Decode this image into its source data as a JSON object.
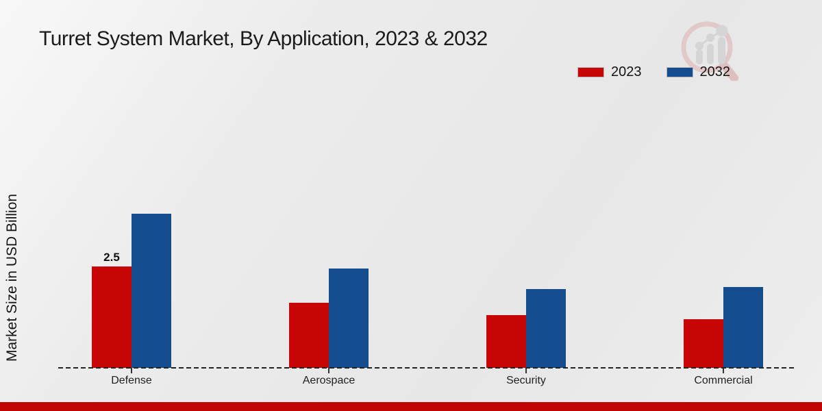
{
  "page": {
    "title": "Turret System Market, By Application, 2023 & 2032"
  },
  "chart_data": {
    "type": "bar",
    "title": "Turret System Market, By Application, 2023 & 2032",
    "xlabel": "",
    "ylabel": "Market Size in USD Billion",
    "unit": "USD Billion",
    "categories": [
      "Defense",
      "Aerospace",
      "Security",
      "Commercial"
    ],
    "series": [
      {
        "name": "2023",
        "color": "#c90606",
        "values": [
          2.5,
          1.6,
          1.3,
          1.2
        ],
        "data_labels": [
          "2.5",
          "",
          "",
          ""
        ]
      },
      {
        "name": "2032",
        "color": "#134d8d",
        "values": [
          3.8,
          2.45,
          1.95,
          2.0
        ],
        "data_labels": [
          "",
          "",
          "",
          ""
        ]
      }
    ],
    "ylim": [
      0,
      4.5
    ],
    "grid": false,
    "axis_style": "dashed-baseline-only",
    "legend_position": "top-right"
  },
  "branding": {
    "watermark_icon": "magnifier-bar-chart-logo-icon",
    "footer_bar_color": "#c00404"
  }
}
